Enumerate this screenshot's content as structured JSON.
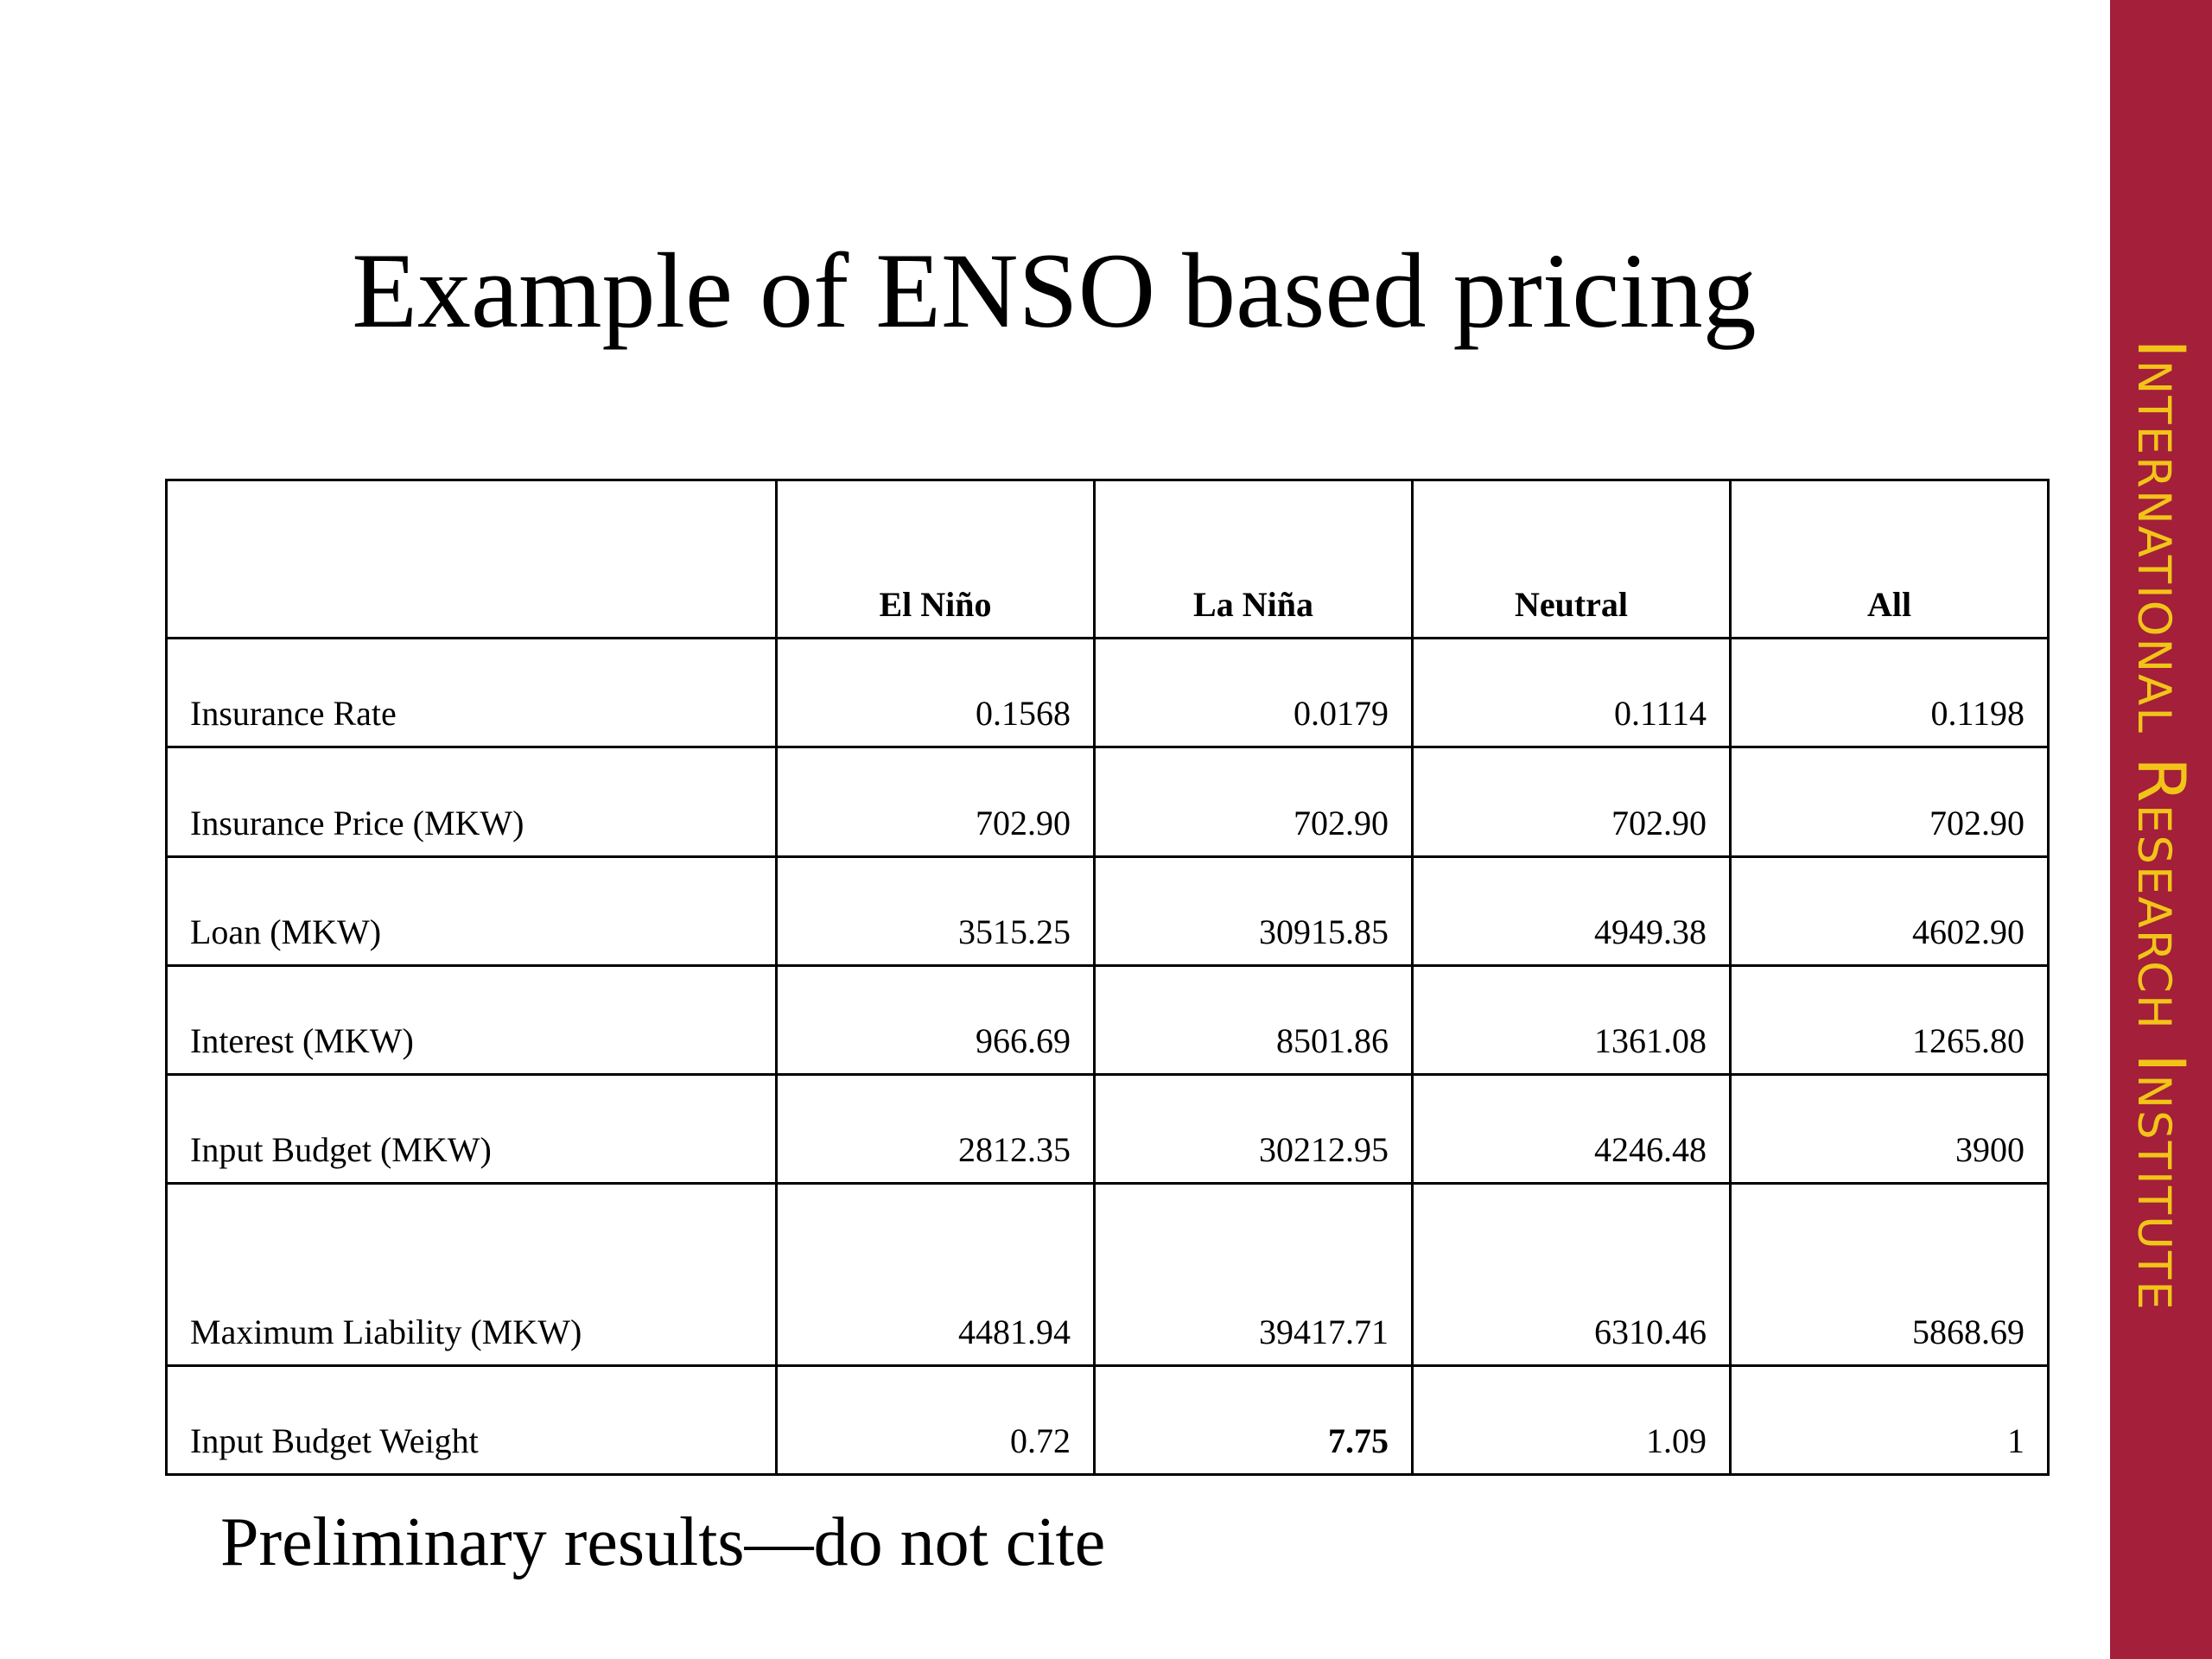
{
  "slide": {
    "title": "Example of ENSO based pricing",
    "footnote": "Preliminary results—do not cite"
  },
  "banner": {
    "text": "International Research Institute",
    "background_color": "#a31f3a",
    "text_color": "#f2c418"
  },
  "table": {
    "headers": [
      "",
      "El Niño",
      "La Niña",
      "Neutral",
      "All"
    ],
    "rows": [
      {
        "label": "Insurance Rate",
        "values": [
          "0.1568",
          "0.0179",
          "0.1114",
          "0.1198"
        ]
      },
      {
        "label": "Insurance Price (MKW)",
        "values": [
          "702.90",
          "702.90",
          "702.90",
          "702.90"
        ]
      },
      {
        "label": "Loan (MKW)",
        "values": [
          "3515.25",
          "30915.85",
          "4949.38",
          "4602.90"
        ]
      },
      {
        "label": "Interest (MKW)",
        "values": [
          "966.69",
          "8501.86",
          "1361.08",
          "1265.80"
        ]
      },
      {
        "label": "Input Budget (MKW)",
        "values": [
          "2812.35",
          "30212.95",
          "4246.48",
          "3900"
        ]
      },
      {
        "label": "Maximum Liability (MKW)",
        "values": [
          "4481.94",
          "39417.71",
          "6310.46",
          "5868.69"
        ]
      },
      {
        "label": "Input Budget Weight",
        "values": [
          "0.72",
          "7.75",
          "1.09",
          "1"
        ]
      }
    ]
  }
}
